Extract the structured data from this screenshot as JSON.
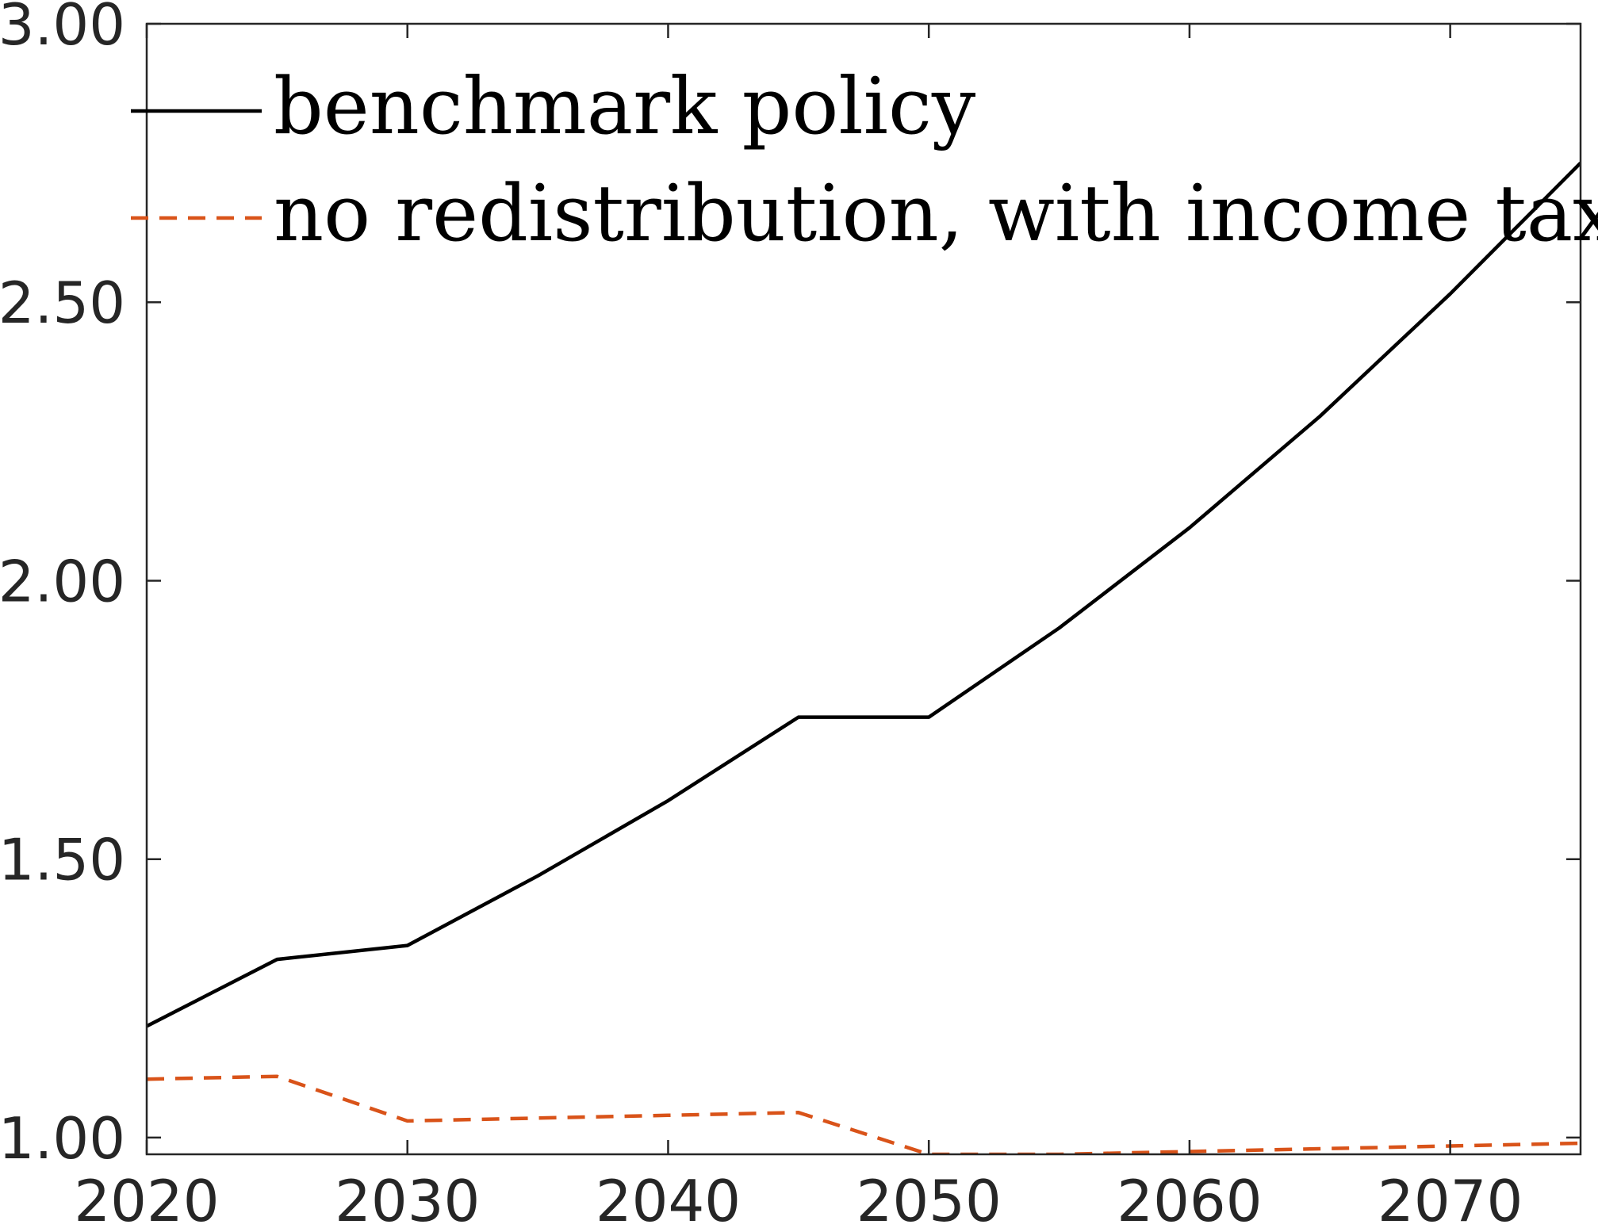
{
  "chart_data": {
    "type": "line",
    "x": [
      2020,
      2025,
      2030,
      2035,
      2040,
      2045,
      2050,
      2055,
      2060,
      2065,
      2070,
      2075
    ],
    "series": [
      {
        "name": "benchmark policy",
        "color": "#000000",
        "style": "solid",
        "values": [
          1.2,
          1.32,
          1.345,
          1.47,
          1.605,
          1.755,
          1.755,
          1.915,
          2.095,
          2.295,
          2.515,
          2.75
        ]
      },
      {
        "name": "no redistribution, with income tax",
        "color": "#D95319",
        "style": "dashed",
        "values": [
          1.105,
          1.11,
          1.03,
          1.035,
          1.04,
          1.045,
          0.97,
          0.97,
          0.975,
          0.98,
          0.985,
          0.99
        ]
      }
    ],
    "xlim": [
      2020,
      2075
    ],
    "ylim": [
      0.97,
      3.0
    ],
    "xticks": [
      2020,
      2030,
      2040,
      2050,
      2060,
      2070
    ],
    "xtick_labels": [
      "2020",
      "2030",
      "2040",
      "2050",
      "2060",
      "2070"
    ],
    "yticks": [
      1.0,
      1.5,
      2.0,
      2.5,
      3.0
    ],
    "ytick_labels": [
      "1.00",
      "1.50",
      "2.00",
      "2.50",
      "3.00"
    ],
    "title": "",
    "xlabel": "",
    "ylabel": "",
    "grid": false,
    "legend_position": "top-left"
  }
}
